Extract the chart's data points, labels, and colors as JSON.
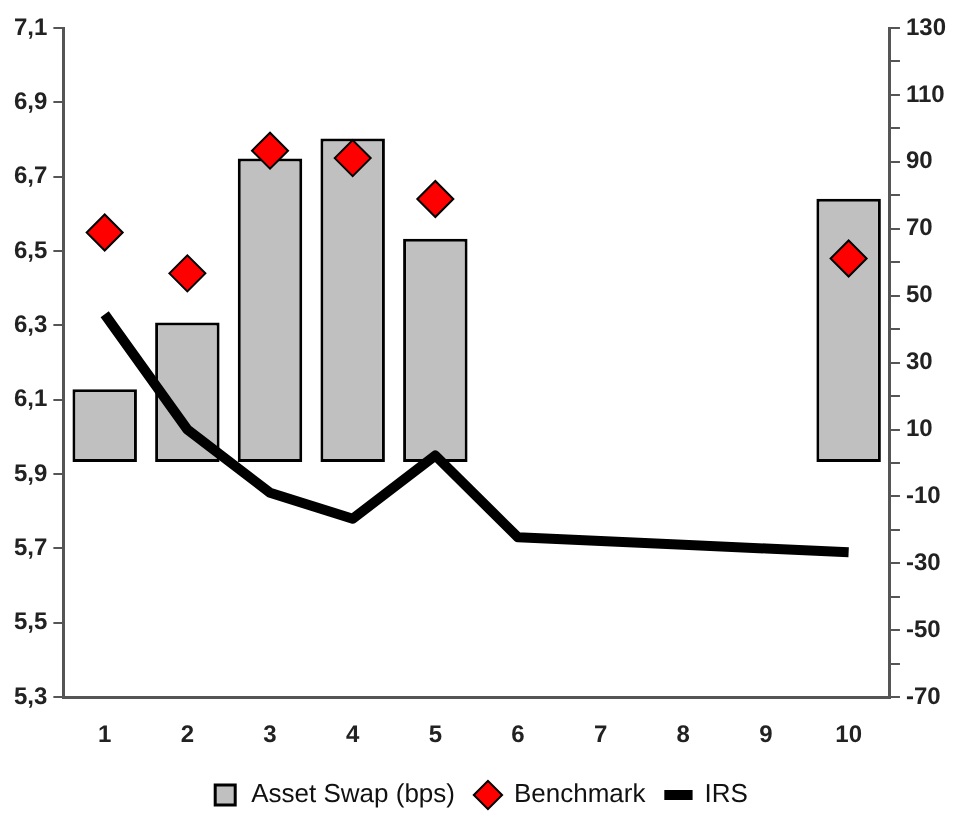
{
  "chart_data": {
    "type": "bar",
    "categories": [
      "1",
      "2",
      "3",
      "4",
      "5",
      "6",
      "7",
      "8",
      "9",
      "10"
    ],
    "series": [
      {
        "name": "Asset Swap (bps)",
        "axis": "y2",
        "color": "#c0c0c0",
        "values": [
          22,
          42,
          91,
          97,
          67,
          null,
          null,
          null,
          null,
          79
        ]
      },
      {
        "name": "Benchmark",
        "type": "scatter",
        "marker": "diamond",
        "color": "#ff0000",
        "values": [
          6.55,
          6.44,
          6.77,
          6.75,
          6.64,
          null,
          null,
          null,
          null,
          6.48
        ]
      },
      {
        "name": "IRS",
        "type": "line",
        "marker": "none",
        "line_style": "solid",
        "color": "#000000",
        "values": [
          6.33,
          6.02,
          5.85,
          5.78,
          5.95,
          5.73,
          5.72,
          5.71,
          5.7,
          5.69
        ]
      }
    ],
    "ylim": [
      5.3,
      7.1
    ],
    "yticks": [
      {
        "value": 5.3,
        "label": "5,3"
      },
      {
        "value": 5.5,
        "label": "5,5"
      },
      {
        "value": 5.7,
        "label": "5,7"
      },
      {
        "value": 5.9,
        "label": "5,9"
      },
      {
        "value": 6.1,
        "label": "6,1"
      },
      {
        "value": 6.3,
        "label": "6,3"
      },
      {
        "value": 6.5,
        "label": "6,5"
      },
      {
        "value": 6.7,
        "label": "6,7"
      },
      {
        "value": 6.9,
        "label": "6,9"
      },
      {
        "value": 7.1,
        "label": "7,1"
      }
    ],
    "y2lim": [
      -70,
      130
    ],
    "y2ticks": [
      -70,
      {
        "value": -60,
        "label": null
      },
      -50,
      {
        "value": -40,
        "label": null
      },
      -30,
      {
        "value": -20,
        "label": null
      },
      -10,
      {
        "value": 0,
        "label": null
      },
      10,
      {
        "value": 20,
        "label": null
      },
      30,
      {
        "value": 40,
        "label": null
      },
      50,
      {
        "value": 60,
        "label": null
      },
      70,
      {
        "value": 80,
        "label": null
      },
      90,
      {
        "value": 100,
        "label": null
      },
      110,
      {
        "value": 120,
        "label": null
      },
      130
    ],
    "grid": false,
    "legend": "bottom"
  }
}
